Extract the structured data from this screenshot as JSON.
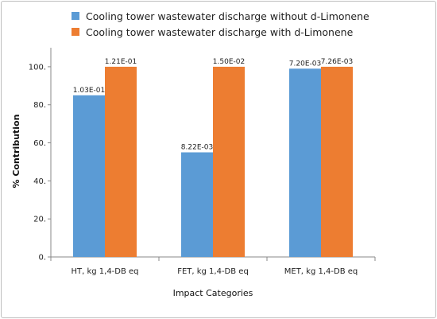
{
  "chart_data": {
    "type": "bar",
    "title": "",
    "xlabel": "Impact Categories",
    "ylabel": "% Contribution",
    "ylim": [
      0,
      110
    ],
    "yticks": [
      0,
      20,
      40,
      60,
      80,
      100
    ],
    "ytick_labels": [
      "0.",
      "20.",
      "40.",
      "60.",
      "80.",
      "100."
    ],
    "categories": [
      "HT, kg 1,4-DB eq",
      "FET, kg 1,4-DB eq",
      "MET, kg 1,4-DB eq"
    ],
    "series": [
      {
        "name": "Cooling tower wastewater discharge without d-Limonene",
        "color": "#5b9bd5",
        "values": [
          85,
          55,
          99
        ],
        "labels": [
          "1.03E-01",
          "8.22E-03",
          "7.20E-03"
        ]
      },
      {
        "name": "Cooling tower wastewater discharge with d-Limonene",
        "color": "#ed7d31",
        "values": [
          100,
          100,
          100
        ],
        "labels": [
          "1.21E-01",
          "1.50E-02",
          "7.26E-03"
        ]
      }
    ],
    "grid": false,
    "legend_position": "top"
  }
}
